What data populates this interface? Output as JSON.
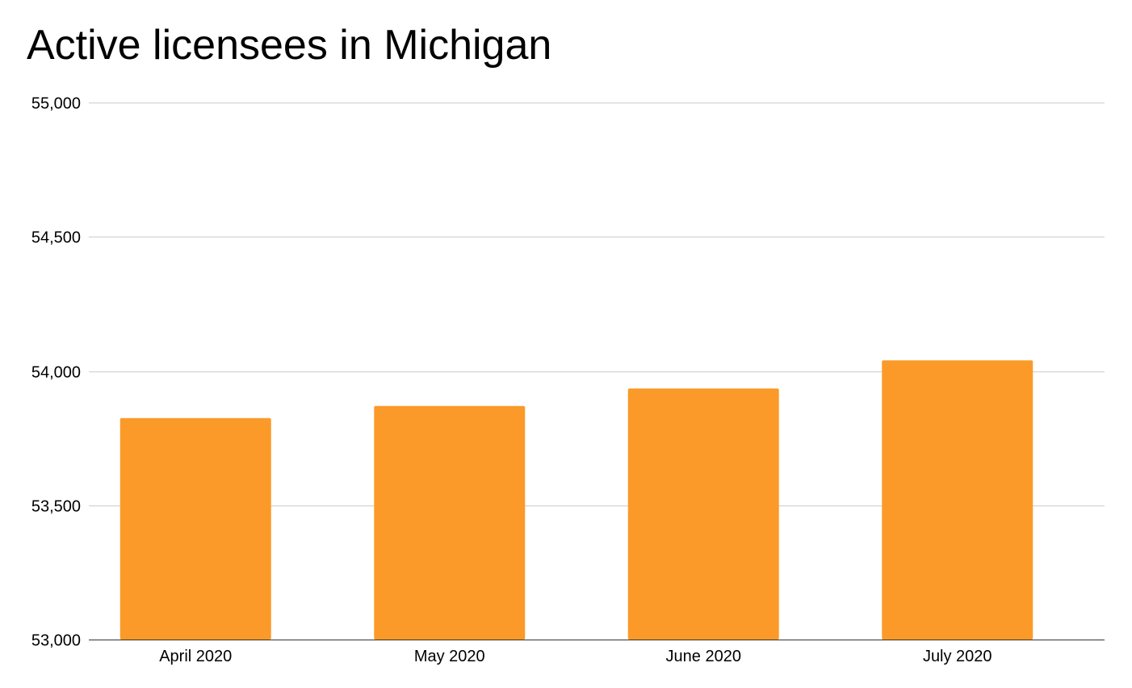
{
  "chart_data": {
    "type": "bar",
    "title": "Active licensees in Michigan",
    "xlabel": "",
    "ylabel": "",
    "categories": [
      "April 2020",
      "May 2020",
      "June 2020",
      "July 2020"
    ],
    "series": [
      {
        "values": [
          53825,
          53870,
          53935,
          54040
        ]
      }
    ],
    "ylim": [
      53000,
      55000
    ],
    "yticks": [
      53000,
      53500,
      54000,
      54500,
      55000
    ],
    "ytick_labels": [
      "53,000",
      "53,500",
      "54,000",
      "54,500",
      "55,000"
    ],
    "grid": true,
    "legend": "none",
    "bar_color": "#fb9a29",
    "grid_color": "#cccccc"
  }
}
